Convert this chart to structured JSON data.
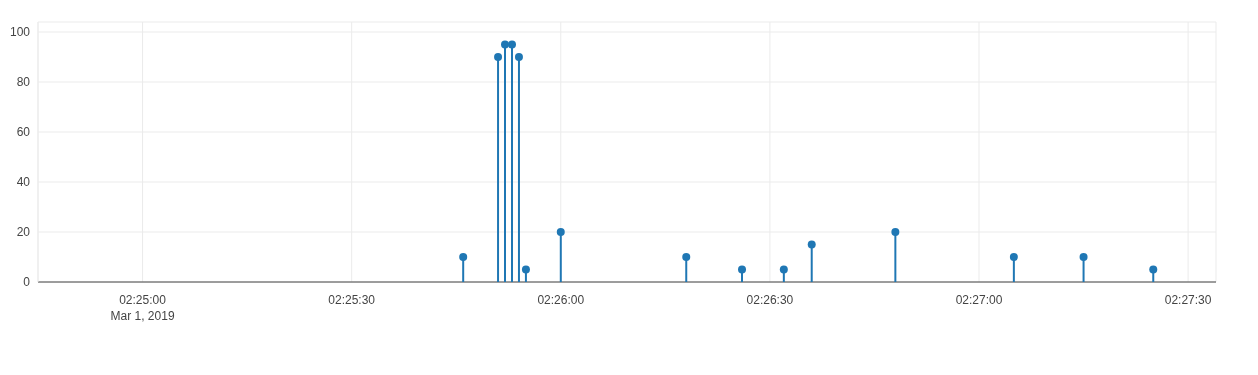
{
  "chart_data": {
    "type": "lollipop",
    "color": "#1f77b4",
    "marker": "circle",
    "grid": true,
    "x": [
      "2019-03-01T02:25:46",
      "2019-03-01T02:25:51",
      "2019-03-01T02:25:52",
      "2019-03-01T02:25:53",
      "2019-03-01T02:25:54",
      "2019-03-01T02:25:55",
      "2019-03-01T02:26:00",
      "2019-03-01T02:26:18",
      "2019-03-01T02:26:26",
      "2019-03-01T02:26:32",
      "2019-03-01T02:26:36",
      "2019-03-01T02:26:48",
      "2019-03-01T02:27:05",
      "2019-03-01T02:27:15",
      "2019-03-01T02:27:25"
    ],
    "values": [
      10,
      90,
      95,
      95,
      90,
      5,
      20,
      10,
      5,
      5,
      15,
      20,
      10,
      10,
      5
    ],
    "xlim": [
      "2019-03-01T02:24:45",
      "2019-03-01T02:27:34"
    ],
    "xticks": [
      {
        "value": "2019-03-01T02:25:00",
        "label": "02:25:00\nMar 1, 2019"
      },
      {
        "value": "2019-03-01T02:25:30",
        "label": "02:25:30"
      },
      {
        "value": "2019-03-01T02:26:00",
        "label": "02:26:00"
      },
      {
        "value": "2019-03-01T02:26:30",
        "label": "02:26:30"
      },
      {
        "value": "2019-03-01T02:27:00",
        "label": "02:27:00"
      },
      {
        "value": "2019-03-01T02:27:30",
        "label": "02:27:30"
      }
    ],
    "ylim": [
      0,
      104
    ],
    "yticks": [
      0,
      20,
      40,
      60,
      80,
      100
    ]
  }
}
